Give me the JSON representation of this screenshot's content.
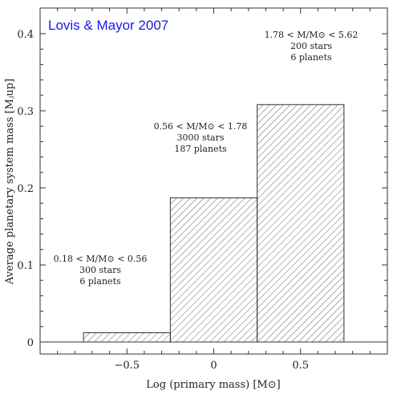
{
  "credit": "Lovis & Mayor 2007",
  "chart_data": {
    "type": "bar",
    "subtype": "step-histogram",
    "xlabel": "Log (primary mass) [M⊙]",
    "ylabel": "Average planetary system mass [Mⱼup]",
    "xlim": [
      -1.0,
      1.0
    ],
    "ylim": [
      0,
      0.42
    ],
    "xticks": [
      -0.5,
      0,
      0.5
    ],
    "xtick_labels": [
      "−0.5",
      "0",
      "0.5"
    ],
    "yticks": [
      0,
      0.1,
      0.2,
      0.3,
      0.4
    ],
    "ytick_labels": [
      "0",
      "0.1",
      "0.2",
      "0.3",
      "0.4"
    ],
    "hatch": "diagonal",
    "bins": [
      {
        "x0": -0.75,
        "x1": -0.25,
        "value": 0.012,
        "label_lines": [
          "0.18 < M/M⊙ < 0.56",
          "300 stars",
          "6 planets"
        ]
      },
      {
        "x0": -0.25,
        "x1": 0.25,
        "value": 0.187,
        "label_lines": [
          "0.56 < M/M⊙ < 1.78",
          "3000 stars",
          "187 planets"
        ]
      },
      {
        "x0": 0.25,
        "x1": 0.75,
        "value": 0.308,
        "label_lines": [
          "1.78 < M/M⊙ < 5.62",
          "200 stars",
          "6 planets"
        ]
      }
    ]
  }
}
